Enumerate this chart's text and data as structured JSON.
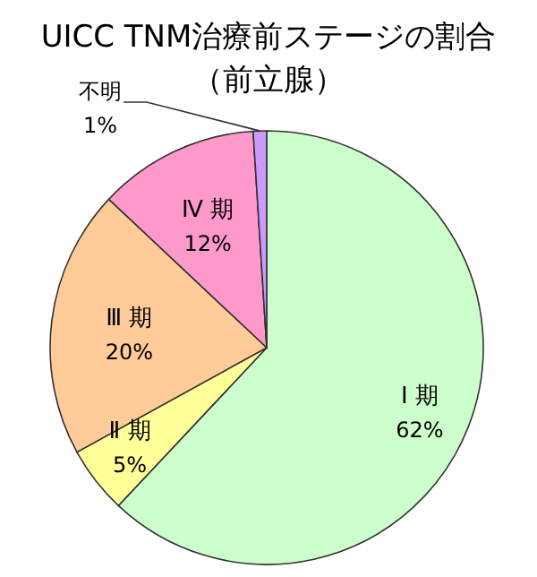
{
  "chart_data": {
    "type": "pie",
    "title": "UICC TNM治療前ステージの割合",
    "subtitle": "（前立腺）",
    "categories": [
      "Ⅰ 期",
      "Ⅱ 期",
      "Ⅲ 期",
      "Ⅳ 期",
      "不明"
    ],
    "values": [
      62,
      5,
      20,
      12,
      1
    ],
    "colors": [
      "#ccffcc",
      "#ffff99",
      "#ffcc99",
      "#ff99cc",
      "#cc99ff"
    ],
    "value_labels": [
      "62%",
      "5%",
      "20%",
      "12%",
      "1%"
    ]
  }
}
